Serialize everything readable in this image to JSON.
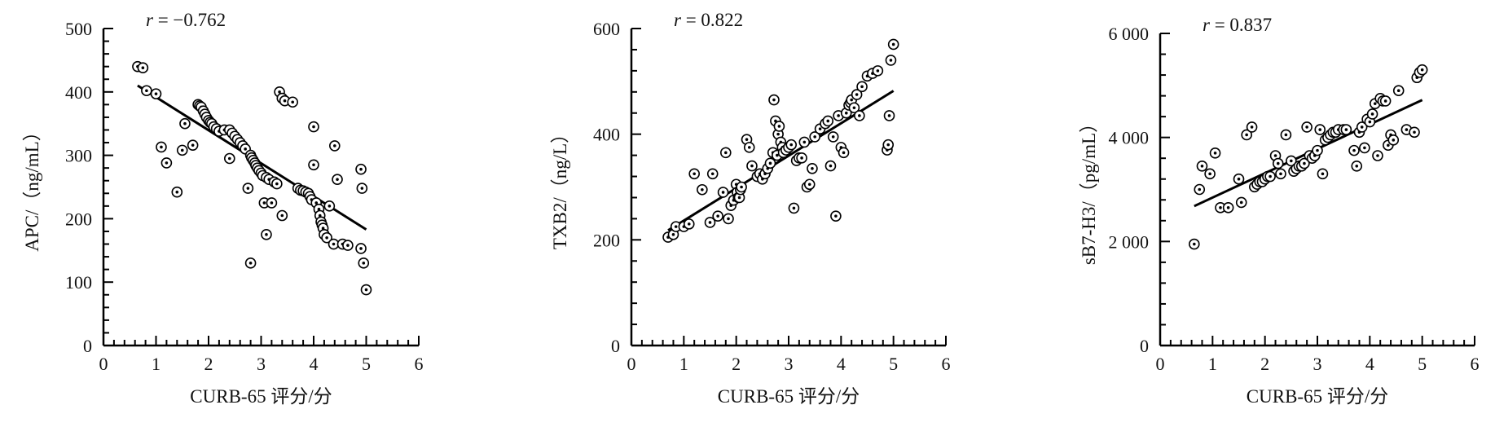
{
  "chart_data": [
    {
      "type": "scatter",
      "annotation": "r = −0.762",
      "annotation_var": "r",
      "annotation_rest": " = −0.762",
      "xlabel": "CURB-65 评分/分",
      "ylabel": "APC/（ng/mL）",
      "xlim": [
        0,
        6
      ],
      "ylim": [
        0,
        500
      ],
      "x_ticks": [
        0,
        1,
        2,
        3,
        4,
        5,
        6
      ],
      "y_ticks": [
        0,
        100,
        200,
        300,
        400,
        500
      ],
      "x_tick_labels": [
        "0",
        "1",
        "2",
        "3",
        "4",
        "5",
        "6"
      ],
      "y_tick_labels": [
        "0",
        "100",
        "200",
        "300",
        "400",
        "500"
      ],
      "fit_line": [
        [
          0.65,
          410
        ],
        [
          5.0,
          183
        ]
      ],
      "x": [
        0.65,
        0.75,
        0.82,
        1.0,
        1.1,
        1.2,
        1.4,
        1.5,
        1.55,
        1.7,
        1.8,
        1.83,
        1.86,
        1.9,
        1.93,
        1.96,
        2.0,
        2.03,
        2.06,
        2.1,
        2.15,
        2.2,
        2.3,
        2.4,
        2.4,
        2.45,
        2.5,
        2.55,
        2.6,
        2.65,
        2.7,
        2.75,
        2.8,
        2.8,
        2.82,
        2.85,
        2.88,
        2.9,
        2.93,
        2.96,
        3.0,
        3.03,
        3.06,
        3.1,
        3.1,
        3.15,
        3.2,
        3.25,
        3.3,
        3.35,
        3.4,
        3.4,
        3.45,
        3.6,
        3.7,
        3.75,
        3.8,
        3.85,
        3.9,
        3.93,
        3.96,
        4.0,
        4.0,
        4.05,
        4.1,
        4.12,
        4.14,
        4.16,
        4.18,
        4.2,
        4.25,
        4.3,
        4.38,
        4.4,
        4.45,
        4.55,
        4.65,
        4.9,
        4.9,
        4.92,
        4.95,
        5.0
      ],
      "y": [
        440,
        438,
        402,
        397,
        313,
        288,
        242,
        308,
        350,
        316,
        380,
        378,
        376,
        370,
        365,
        360,
        355,
        352,
        350,
        345,
        342,
        338,
        340,
        295,
        340,
        335,
        330,
        325,
        320,
        315,
        310,
        248,
        130,
        300,
        296,
        292,
        288,
        284,
        280,
        276,
        272,
        268,
        225,
        175,
        265,
        262,
        225,
        258,
        255,
        400,
        390,
        205,
        386,
        384,
        248,
        245,
        244,
        242,
        240,
        235,
        230,
        285,
        345,
        225,
        215,
        205,
        195,
        190,
        185,
        175,
        170,
        220,
        160,
        315,
        262,
        160,
        158,
        153,
        278,
        248,
        130,
        88
      ]
    },
    {
      "type": "scatter",
      "annotation": "r = 0.822",
      "annotation_var": "r",
      "annotation_rest": " = 0.822",
      "xlabel": "CURB-65 评分/分",
      "ylabel": "TXB2/（ng/L）",
      "xlim": [
        0,
        6
      ],
      "ylim": [
        0,
        600
      ],
      "x_ticks": [
        0,
        1,
        2,
        3,
        4,
        5,
        6
      ],
      "y_ticks": [
        0,
        200,
        400,
        600
      ],
      "x_tick_labels": [
        "0",
        "1",
        "2",
        "3",
        "4",
        "5",
        "6"
      ],
      "y_tick_labels": [
        "0",
        "200",
        "400",
        "600"
      ],
      "fit_line": [
        [
          0.7,
          218
        ],
        [
          5.0,
          482
        ]
      ],
      "x": [
        0.7,
        0.8,
        0.85,
        1.0,
        1.1,
        1.2,
        1.35,
        1.5,
        1.55,
        1.65,
        1.75,
        1.8,
        1.85,
        1.9,
        1.95,
        2.0,
        2.02,
        2.04,
        2.06,
        2.08,
        2.1,
        2.2,
        2.25,
        2.3,
        2.4,
        2.45,
        2.5,
        2.55,
        2.6,
        2.65,
        2.7,
        2.72,
        2.75,
        2.78,
        2.8,
        2.82,
        2.85,
        2.88,
        2.9,
        2.95,
        3.0,
        3.05,
        3.1,
        3.15,
        3.2,
        3.25,
        3.3,
        3.35,
        3.4,
        3.45,
        3.5,
        3.6,
        3.7,
        3.75,
        3.8,
        3.85,
        3.9,
        3.95,
        4.0,
        4.05,
        4.1,
        4.15,
        4.18,
        4.2,
        4.25,
        4.3,
        4.35,
        4.4,
        4.5,
        4.6,
        4.7,
        4.88,
        4.9,
        4.92,
        4.95,
        5.0
      ],
      "y": [
        205,
        210,
        225,
        225,
        230,
        325,
        295,
        233,
        325,
        245,
        290,
        365,
        240,
        265,
        275,
        305,
        290,
        280,
        280,
        295,
        300,
        390,
        375,
        340,
        320,
        325,
        315,
        325,
        335,
        345,
        365,
        465,
        425,
        360,
        400,
        415,
        385,
        375,
        365,
        370,
        375,
        380,
        260,
        350,
        355,
        355,
        385,
        300,
        305,
        335,
        395,
        410,
        420,
        425,
        340,
        395,
        245,
        435,
        375,
        365,
        440,
        455,
        460,
        465,
        450,
        475,
        435,
        490,
        510,
        515,
        520,
        370,
        380,
        435,
        540,
        570
      ]
    },
    {
      "type": "scatter",
      "annotation": "r = 0.837",
      "annotation_var": "r",
      "annotation_rest": " = 0.837",
      "xlabel": "CURB-65 评分/分",
      "ylabel": "sB7-H3/（pg/mL）",
      "xlim": [
        0,
        6
      ],
      "ylim": [
        0,
        6000
      ],
      "x_ticks": [
        0,
        1,
        2,
        3,
        4,
        5,
        6
      ],
      "y_ticks": [
        0,
        2000,
        4000,
        6000
      ],
      "x_tick_labels": [
        "0",
        "1",
        "2",
        "3",
        "4",
        "5",
        "6"
      ],
      "y_tick_labels": [
        "0",
        "2 000",
        "4 000",
        "6 000"
      ],
      "fit_line": [
        [
          0.65,
          2680
        ],
        [
          5.0,
          4720
        ]
      ],
      "x": [
        0.65,
        0.75,
        0.8,
        0.95,
        1.05,
        1.15,
        1.3,
        1.5,
        1.55,
        1.65,
        1.75,
        1.8,
        1.85,
        1.9,
        1.95,
        2.0,
        2.05,
        2.1,
        2.2,
        2.25,
        2.3,
        2.4,
        2.5,
        2.55,
        2.6,
        2.65,
        2.7,
        2.75,
        2.8,
        2.85,
        2.9,
        2.95,
        3.0,
        3.05,
        3.1,
        3.15,
        3.2,
        3.25,
        3.3,
        3.35,
        3.4,
        3.5,
        3.55,
        3.7,
        3.75,
        3.8,
        3.85,
        3.9,
        3.95,
        4.0,
        4.05,
        4.1,
        4.15,
        4.2,
        4.25,
        4.3,
        4.35,
        4.4,
        4.45,
        4.55,
        4.7,
        4.85,
        4.9,
        4.95,
        5.0
      ],
      "y": [
        1950,
        3000,
        3450,
        3300,
        3700,
        2650,
        2650,
        3200,
        2750,
        4050,
        4200,
        3050,
        3100,
        3150,
        3150,
        3200,
        3250,
        3250,
        3650,
        3500,
        3300,
        4050,
        3550,
        3350,
        3400,
        3450,
        3450,
        3500,
        4200,
        3650,
        3600,
        3650,
        3750,
        4150,
        3300,
        3950,
        4000,
        4050,
        4100,
        4100,
        4150,
        4150,
        4150,
        3750,
        3450,
        4100,
        4200,
        3800,
        4350,
        4300,
        4450,
        4650,
        3650,
        4750,
        4700,
        4700,
        3850,
        4050,
        3950,
        4900,
        4150,
        4100,
        5150,
        5250,
        5300
      ]
    }
  ]
}
